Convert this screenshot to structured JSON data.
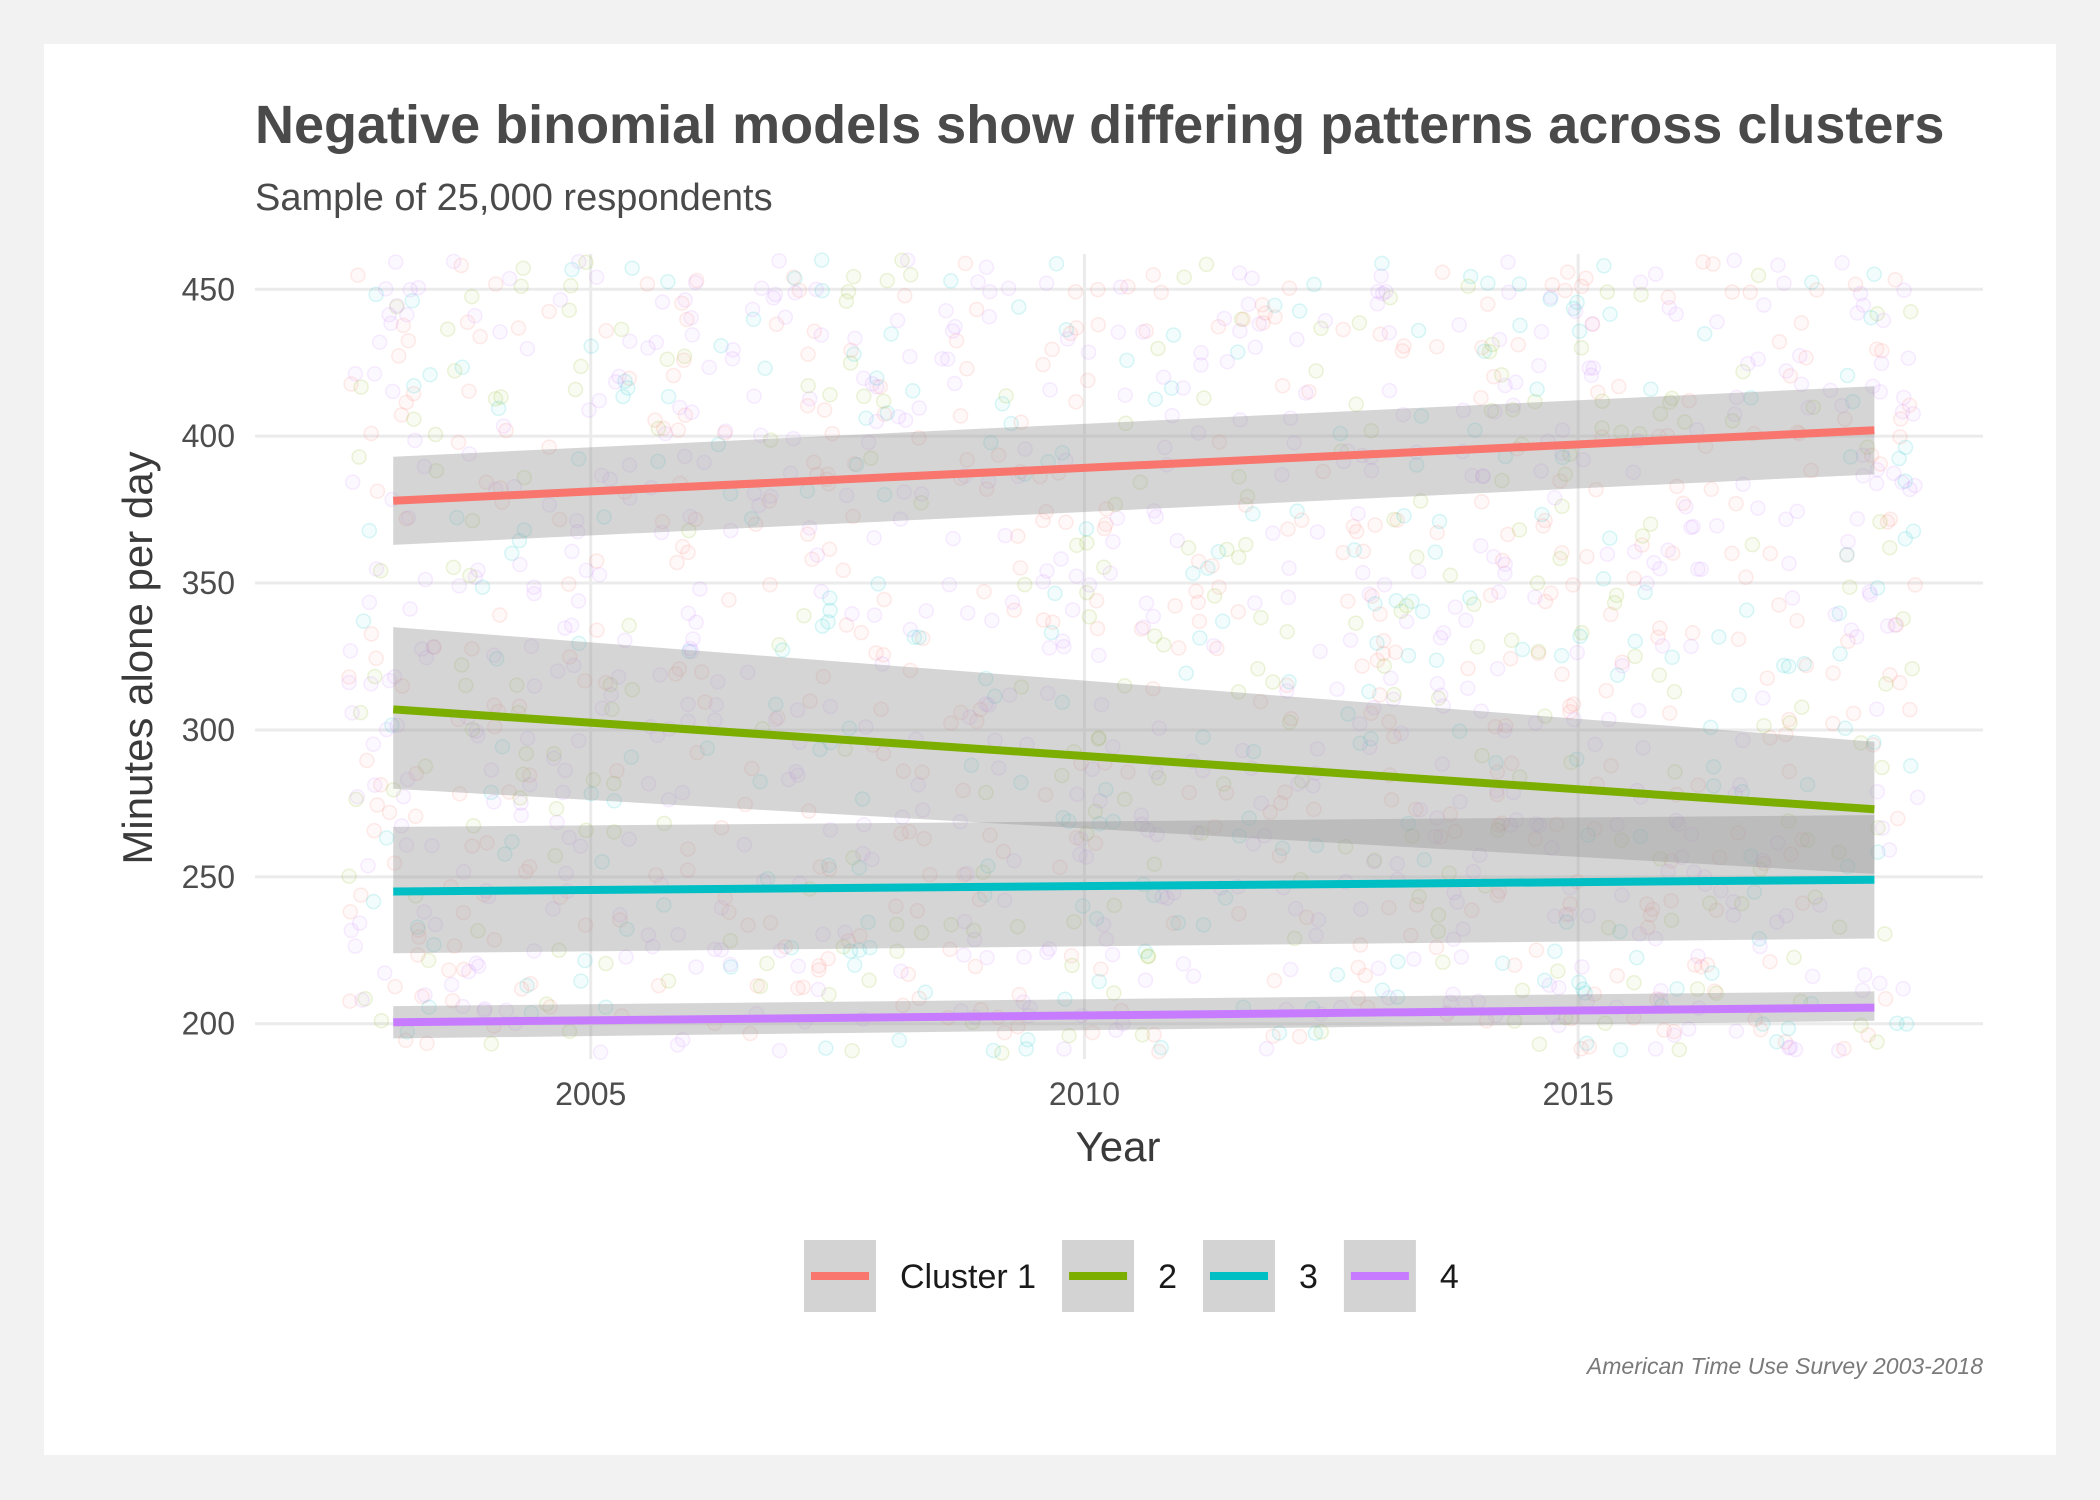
{
  "chart_data": {
    "type": "scatter",
    "title": "Negative binomial models show differing patterns across clusters",
    "subtitle": "Sample of 25,000 respondents",
    "xlabel": "Year",
    "ylabel": "Minutes alone per day",
    "caption": "American Time Use Survey 2003-2018",
    "xlim": [
      2001.6,
      2019.1
    ],
    "ylim": [
      188,
      462
    ],
    "x_ticks": [
      2005,
      2010,
      2015
    ],
    "y_ticks": [
      200,
      250,
      300,
      350,
      400,
      450
    ],
    "grid": true,
    "legend_position": "bottom",
    "scatter_points_per_series": 500,
    "series": [
      {
        "name": "Cluster 1",
        "color": "#f8766d",
        "x": [
          2003,
          2018
        ],
        "fit": [
          378,
          402
        ],
        "ci_lower": [
          363,
          387
        ],
        "ci_upper": [
          393,
          417
        ]
      },
      {
        "name": "2",
        "color": "#7cae00",
        "x": [
          2003,
          2018
        ],
        "fit": [
          307,
          273
        ],
        "ci_lower": [
          280,
          251
        ],
        "ci_upper": [
          335,
          296
        ]
      },
      {
        "name": "3",
        "color": "#00bfc4",
        "x": [
          2003,
          2018
        ],
        "fit": [
          245,
          249
        ],
        "ci_lower": [
          224,
          229
        ],
        "ci_upper": [
          267,
          271
        ]
      },
      {
        "name": "4",
        "color": "#c77cff",
        "x": [
          2003,
          2018
        ],
        "fit": [
          200.5,
          205.5
        ],
        "ci_lower": [
          195,
          201
        ],
        "ci_upper": [
          206,
          211
        ]
      }
    ]
  }
}
